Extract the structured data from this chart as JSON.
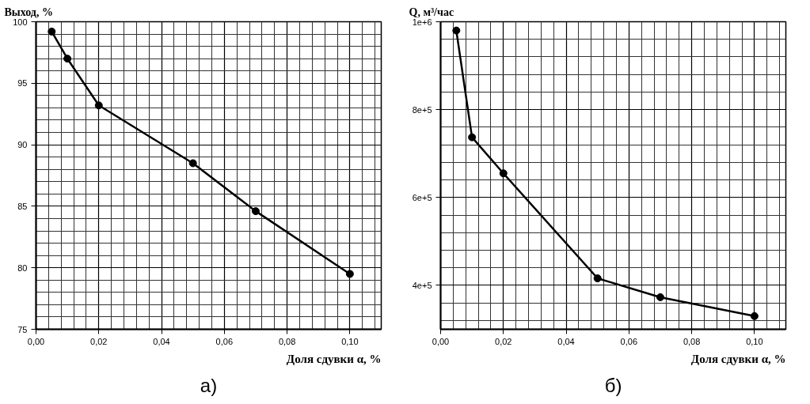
{
  "chart_data": [
    {
      "type": "line",
      "ylabel": "Выход, %",
      "xlabel": "Доля сдувки α, %",
      "annotations": [
        "а)"
      ],
      "x": [
        0.005,
        0.01,
        0.02,
        0.05,
        0.07,
        0.1
      ],
      "series": [
        {
          "color": "#000000",
          "values": [
            99.2,
            97.0,
            93.2,
            88.5,
            84.6,
            79.5
          ]
        }
      ],
      "xlim": [
        0,
        0.11
      ],
      "ylim": [
        75,
        100
      ],
      "xticks": [
        {
          "value": 0,
          "label": "0,00"
        },
        {
          "value": 0.02,
          "label": "0,02"
        },
        {
          "value": 0.04,
          "label": "0,04"
        },
        {
          "value": 0.06,
          "label": "0,06"
        },
        {
          "value": 0.08,
          "label": "0,08"
        },
        {
          "value": 0.1,
          "label": "0,10"
        }
      ],
      "yticks": [
        75,
        80,
        85,
        90,
        95,
        100
      ],
      "grid": true,
      "marker": "circle",
      "line_style": "solid"
    },
    {
      "type": "line",
      "ylabel": "Q, м³/час",
      "xlabel": "Доля сдувки α, %",
      "annotations": [
        "б)"
      ],
      "x": [
        0.005,
        0.01,
        0.02,
        0.05,
        0.07,
        0.1
      ],
      "series": [
        {
          "color": "#000000",
          "values": [
            980000,
            737000,
            655000,
            416000,
            373000,
            330000
          ]
        }
      ],
      "xlim": [
        0,
        0.11
      ],
      "ylim": [
        300000,
        1000000
      ],
      "xticks": [
        {
          "value": 0,
          "label": "0,00"
        },
        {
          "value": 0.02,
          "label": "0,02"
        },
        {
          "value": 0.04,
          "label": "0,04"
        },
        {
          "value": 0.06,
          "label": "0,06"
        },
        {
          "value": 0.08,
          "label": "0,08"
        },
        {
          "value": 0.1,
          "label": "0,10"
        }
      ],
      "yticks": [
        {
          "value": 400000,
          "label": "4e+5"
        },
        {
          "value": 600000,
          "label": "6e+5"
        },
        {
          "value": 800000,
          "label": "8e+5"
        },
        {
          "value": 1000000,
          "label": "1e+6"
        }
      ],
      "grid": true,
      "marker": "circle",
      "line_style": "solid"
    }
  ]
}
